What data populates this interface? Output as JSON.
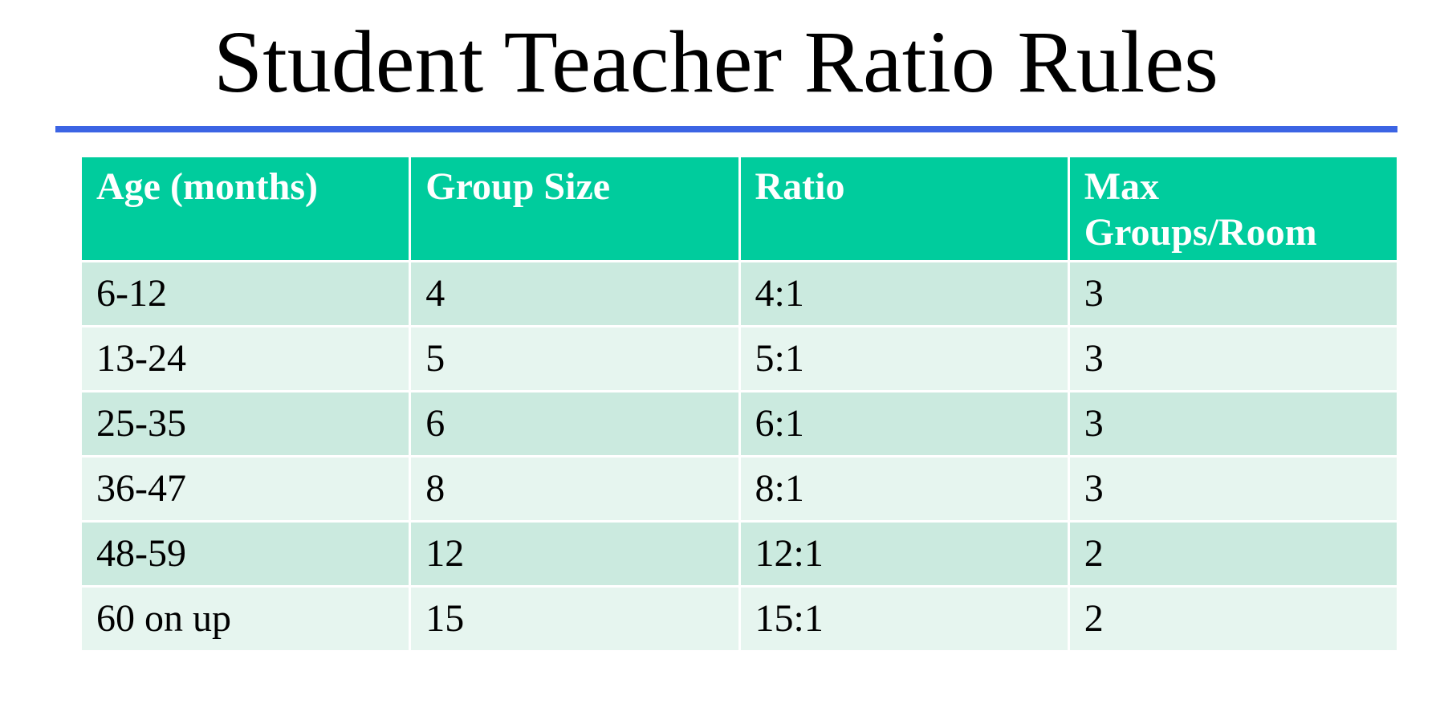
{
  "slide": {
    "title": "Student Teacher Ratio Rules"
  },
  "table": {
    "headers": [
      "Age (months)",
      "Group Size",
      "Ratio",
      "Max Groups/Room"
    ],
    "rows": [
      [
        "6-12",
        "4",
        "4:1",
        "3"
      ],
      [
        "13-24",
        "5",
        "5:1",
        "3"
      ],
      [
        "25-35",
        "6",
        "6:1",
        "3"
      ],
      [
        "36-47",
        "8",
        "8:1",
        "3"
      ],
      [
        "48-59",
        "12",
        "12:1",
        "2"
      ],
      [
        "60 on up",
        "15",
        "15:1",
        "2"
      ]
    ]
  },
  "colors": {
    "title_rule": "#3c64e4",
    "header_bg": "#00cc9d",
    "row_odd_bg": "#cbeadf",
    "row_even_bg": "#e6f5ef"
  }
}
